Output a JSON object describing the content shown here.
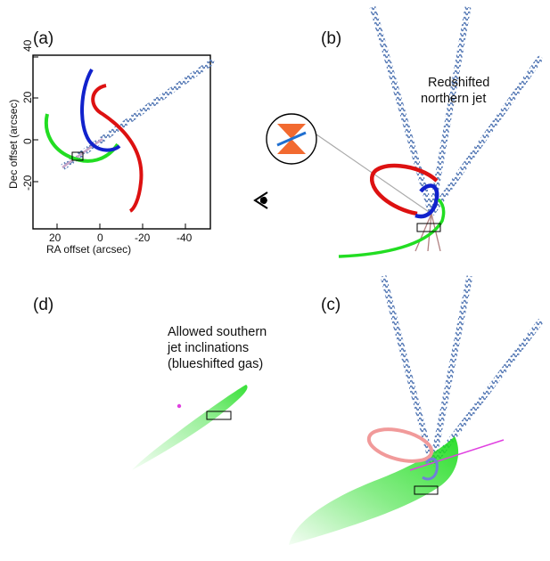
{
  "panels": {
    "a": {
      "letter": "(a)"
    },
    "b": {
      "letter": "(b)",
      "note_line1": "Redshifted",
      "note_line2": "northern jet"
    },
    "c": {
      "letter": "(c)"
    },
    "d": {
      "letter": "(d)",
      "note_line1": "Allowed southern",
      "note_line2": "jet inclinations",
      "note_line3": "(blueshifted gas)"
    }
  },
  "axes_a": {
    "xlabel": "RA offset (arcsec)",
    "ylabel": "Dec offset (arcsec)",
    "xticks": [
      "20",
      "0",
      "-20",
      "-40"
    ],
    "yticks": [
      "40",
      "20",
      "0",
      "-20"
    ]
  },
  "colors": {
    "red_curve": "#dd1111",
    "blue_curve": "#1122cc",
    "green_curve": "#22dd22",
    "jet": "#6f8fbf",
    "magenta_axis": "#e040e0",
    "cone": "#f26a30",
    "disk": "#1f6fd0",
    "red_faded": "#f19a9a"
  },
  "icons": {
    "eye": "eye-icon",
    "outflow_inset": "bipolar-outflow-icon"
  }
}
